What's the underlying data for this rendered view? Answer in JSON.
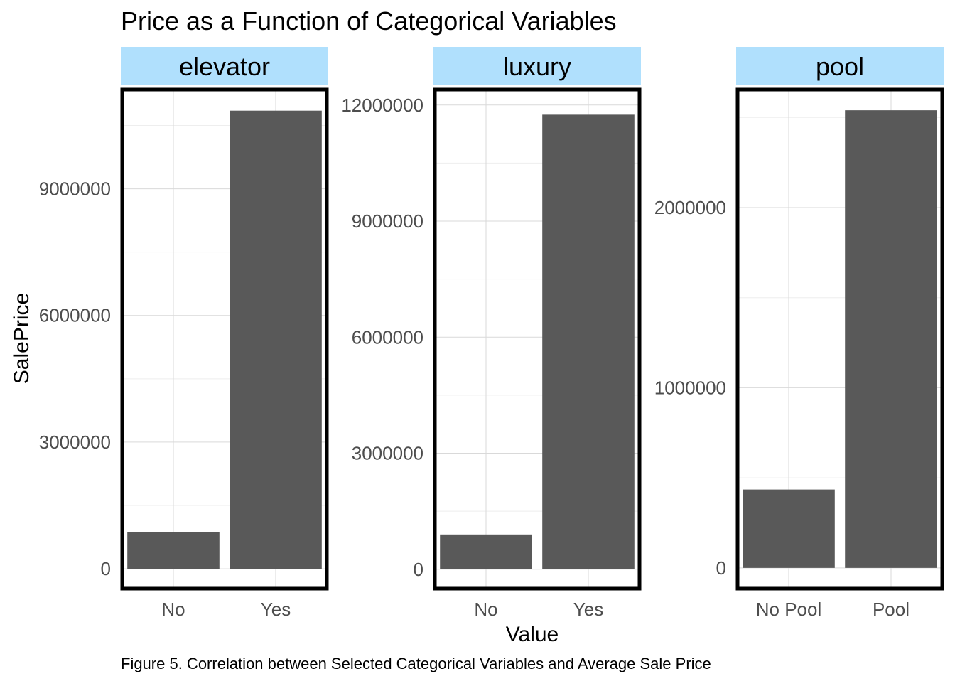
{
  "chart_data": {
    "type": "bar",
    "title": "Price as a Function of Categorical Variables",
    "xlabel": "Value",
    "ylabel": "SalePrice",
    "caption": "Figure 5. Correlation between Selected Categorical Variables and Average Sale Price",
    "grid": true,
    "legend": "none",
    "bar_color": "#595959",
    "strip_color": "#b0e0fd",
    "panels": [
      {
        "name": "elevator",
        "categories": [
          "No",
          "Yes"
        ],
        "values": [
          870000,
          10850000
        ],
        "ylim": [
          -470000,
          11350000
        ],
        "yticks": [
          0,
          3000000,
          6000000,
          9000000
        ],
        "ytick_labels": [
          "0",
          "3000000",
          "6000000",
          "9000000"
        ]
      },
      {
        "name": "luxury",
        "categories": [
          "No",
          "Yes"
        ],
        "values": [
          900000,
          11750000
        ],
        "ylim": [
          -500000,
          12400000
        ],
        "yticks": [
          0,
          3000000,
          6000000,
          9000000,
          12000000
        ],
        "ytick_labels": [
          "0",
          "3000000",
          "6000000",
          "9000000",
          "12000000"
        ]
      },
      {
        "name": "pool",
        "categories": [
          "No Pool",
          "Pool"
        ],
        "values": [
          435000,
          2540000
        ],
        "ylim": [
          -115000,
          2655000
        ],
        "yticks": [
          0,
          1000000,
          2000000
        ],
        "ytick_labels": [
          "0",
          "1000000",
          "2000000"
        ]
      }
    ]
  }
}
